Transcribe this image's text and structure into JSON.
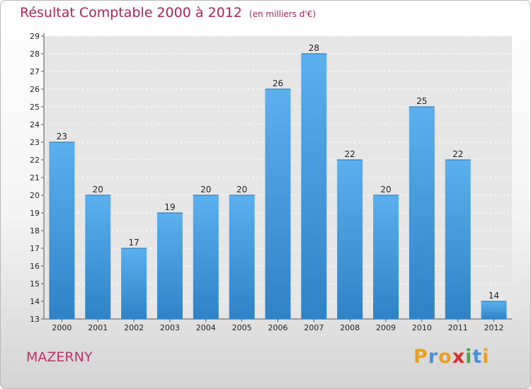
{
  "title": "Résultat Comptable 2000 à 2012",
  "unit": "(en milliers d'€)",
  "commune": "MAZERNY",
  "brand": {
    "letters": [
      "P",
      "r",
      "o",
      "x",
      "i",
      "t",
      "i"
    ],
    "colors": [
      "#e8a020",
      "#4a90d9",
      "#e8a020",
      "#d9302e",
      "#4aa84a",
      "#4a90d9",
      "#e8a020"
    ]
  },
  "chart_data": {
    "type": "bar",
    "title": "Résultat Comptable 2000 à 2012",
    "categories": [
      "2000",
      "2001",
      "2002",
      "2003",
      "2004",
      "2005",
      "2006",
      "2007",
      "2008",
      "2009",
      "2010",
      "2011",
      "2012"
    ],
    "values": [
      23,
      20,
      17,
      19,
      20,
      20,
      26,
      28,
      22,
      20,
      25,
      22,
      14
    ],
    "value_labels": [
      "23",
      "20",
      "17",
      "19",
      "20",
      "20",
      "26",
      "28",
      "22",
      "20",
      "25",
      "22",
      "14"
    ],
    "yticks": [
      "13",
      "14",
      "15",
      "16",
      "17",
      "18",
      "19",
      "20",
      "21",
      "22",
      "23",
      "24",
      "25",
      "26",
      "27",
      "28",
      "29"
    ],
    "ylim": [
      13,
      29
    ],
    "grid": true,
    "bar_color": "#4a9ee0"
  }
}
